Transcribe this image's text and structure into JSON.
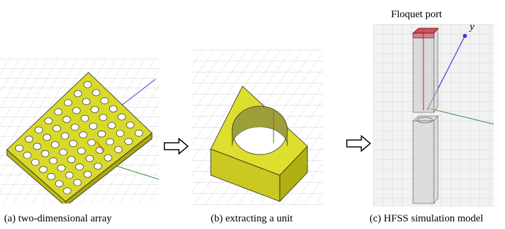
{
  "panels": [
    {
      "id": "a",
      "caption": "(a) two-dimensional array"
    },
    {
      "id": "b",
      "caption": "(b) extracting a unit"
    },
    {
      "id": "c",
      "caption": "(c) HFSS simulation model"
    }
  ],
  "annotations": {
    "port_label": "Floquet port",
    "axis_y": "y"
  },
  "colors": {
    "array_face": "#d9d92a",
    "array_side": "#b8b81a",
    "grid": "#cfcfcf",
    "port": "#c21d2a",
    "axis_blue": "#3c3cd6",
    "axis_green": "#2f8f3a"
  },
  "array": {
    "rows": 7,
    "cols": 8
  }
}
